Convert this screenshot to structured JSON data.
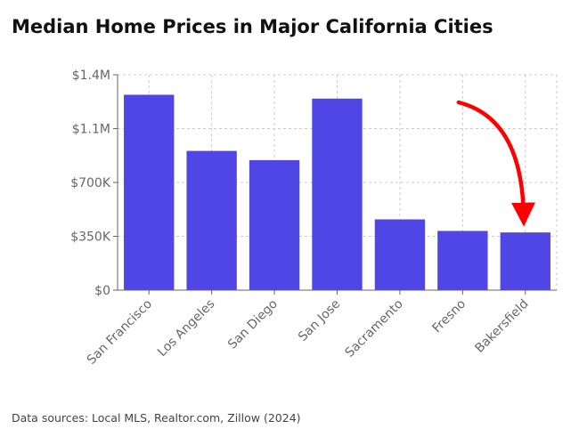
{
  "chart_data": {
    "type": "bar",
    "title": "Median Home Prices in Major California Cities",
    "categories": [
      "San Francisco",
      "Los Angeles",
      "San Diego",
      "San Jose",
      "Sacramento",
      "Fresno",
      "Bakersfield"
    ],
    "values": [
      1270000,
      905000,
      845000,
      1245000,
      460000,
      385000,
      375000
    ],
    "ylim": [
      0,
      1400000
    ],
    "yticks": [
      0,
      350000,
      700000,
      1050000,
      1400000
    ],
    "ytick_labels": [
      "$0",
      "$350K",
      "$700K",
      "$1.1M",
      "$1.4M"
    ],
    "xlabel": "",
    "ylabel": "",
    "grid": true,
    "bar_color": "#4f46e5",
    "annotation": {
      "type": "arrow",
      "color": "#ff0000",
      "target_category": "Bakersfield"
    }
  },
  "source_note": "Data sources: Local MLS, Realtor.com, Zillow (2024)"
}
